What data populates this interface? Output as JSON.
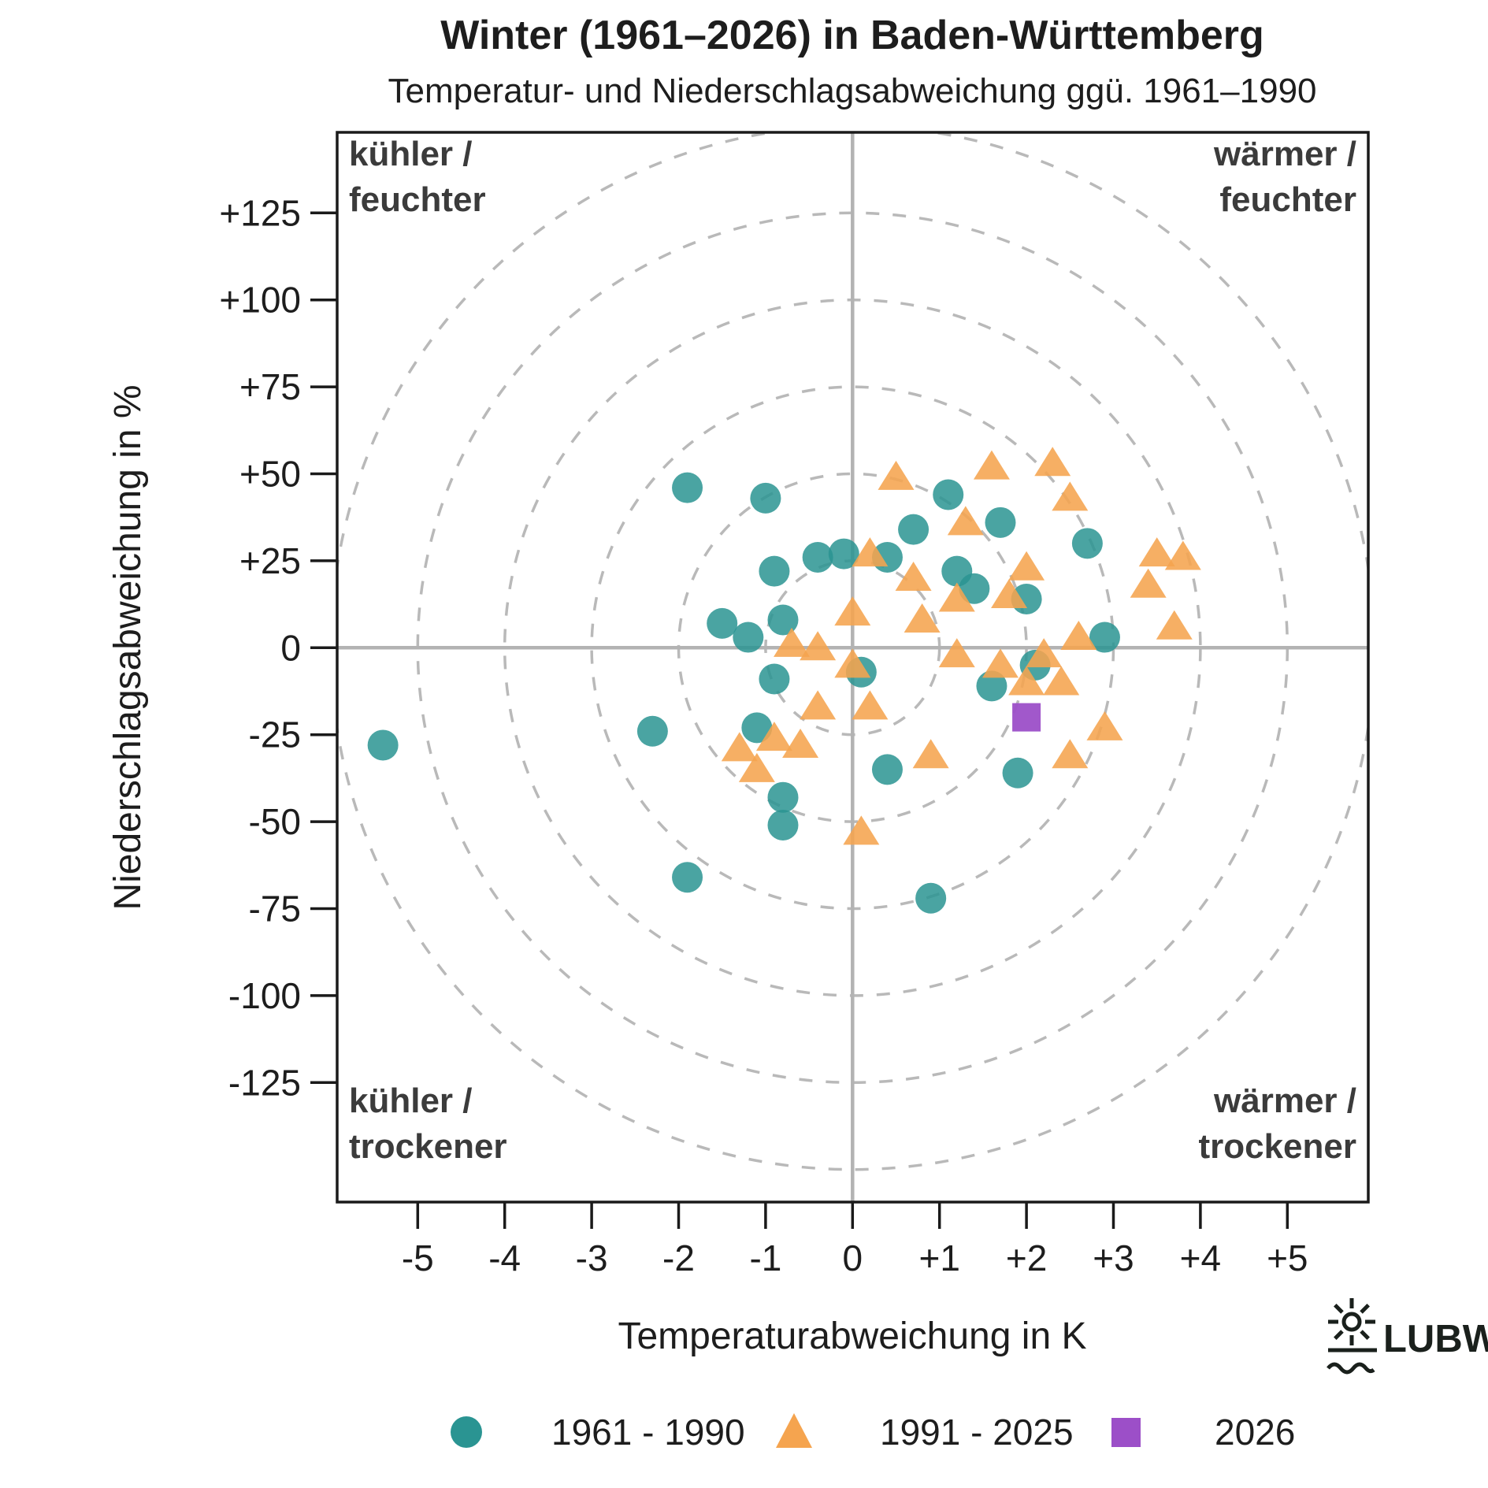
{
  "header": {
    "title": "Winter (1961–2026) in Baden-Württemberg",
    "subtitle": "Temperatur- und Niederschlagsabweichung ggü. 1961–1990"
  },
  "axes": {
    "x_label": "Temperaturabweichung in K",
    "y_label": "Niederschlagsabweichung in %",
    "x_ticks": [
      {
        "value": -5,
        "label": "-5"
      },
      {
        "value": -4,
        "label": "-4"
      },
      {
        "value": -3,
        "label": "-3"
      },
      {
        "value": -2,
        "label": "-2"
      },
      {
        "value": -1,
        "label": "-1"
      },
      {
        "value": 0,
        "label": "0"
      },
      {
        "value": 1,
        "label": "+1"
      },
      {
        "value": 2,
        "label": "+2"
      },
      {
        "value": 3,
        "label": "+3"
      },
      {
        "value": 4,
        "label": "+4"
      },
      {
        "value": 5,
        "label": "+5"
      }
    ],
    "y_ticks": [
      {
        "value": 125,
        "label": "+125"
      },
      {
        "value": 100,
        "label": "+100"
      },
      {
        "value": 75,
        "label": "+75"
      },
      {
        "value": 50,
        "label": "+50"
      },
      {
        "value": 25,
        "label": "+25"
      },
      {
        "value": 0,
        "label": "0"
      },
      {
        "value": -25,
        "label": "-25"
      },
      {
        "value": -50,
        "label": "-50"
      },
      {
        "value": -75,
        "label": "-75"
      },
      {
        "value": -100,
        "label": "-100"
      },
      {
        "value": -125,
        "label": "-125"
      }
    ]
  },
  "quadrants": {
    "top_left": [
      "kühler /",
      "feuchter"
    ],
    "top_right": [
      "wärmer /",
      "feuchter"
    ],
    "bottom_left": [
      "kühler /",
      "trockener"
    ],
    "bottom_right": [
      "wärmer /",
      "trockener"
    ]
  },
  "legend": [
    {
      "label": "1961 - 1990",
      "marker": "circle",
      "color": "#2A9492"
    },
    {
      "label": "1991 - 2025",
      "marker": "triangle",
      "color": "#F5A44F"
    },
    {
      "label": "2026",
      "marker": "square",
      "color": "#9C4FC8"
    }
  ],
  "logo": {
    "text": "LUBW"
  },
  "colors": {
    "teal": "#2A9492",
    "orange": "#F5A44F",
    "purple": "#9C4FC8",
    "grid_dashed": "#b9b9b9",
    "zero_line": "#b3b3b3",
    "border": "#1a1a1a",
    "quadrant_text": "#3b3b3b"
  },
  "chart_data": {
    "type": "scatter",
    "title": "Winter (1961–2026) in Baden-Württemberg",
    "subtitle": "Temperatur- und Niederschlagsabweichung ggü. 1961–1990",
    "xlabel": "Temperaturabweichung in K",
    "ylabel": "Niederschlagsabweichung in %",
    "xlim": [
      -5.93,
      5.93
    ],
    "ylim": [
      -159,
      148
    ],
    "grid": "dashed concentric circles, radii in % units, centered at origin",
    "grid_circle_radii": [
      25,
      50,
      75,
      100,
      125,
      150
    ],
    "legend_position": "bottom",
    "series": [
      {
        "name": "1961 - 1990",
        "marker": "circle",
        "color": "#2A9492",
        "points": [
          [
            -1.9,
            46
          ],
          [
            -1.0,
            43
          ],
          [
            0.7,
            34
          ],
          [
            1.1,
            44
          ],
          [
            1.7,
            36
          ],
          [
            2.7,
            30
          ],
          [
            -0.4,
            26
          ],
          [
            -0.1,
            27
          ],
          [
            0.4,
            26
          ],
          [
            -0.9,
            22
          ],
          [
            1.2,
            22
          ],
          [
            1.4,
            17
          ],
          [
            2.0,
            14
          ],
          [
            2.9,
            3
          ],
          [
            -1.5,
            7
          ],
          [
            -1.2,
            3
          ],
          [
            -0.8,
            8
          ],
          [
            0.1,
            -7
          ],
          [
            -0.9,
            -9
          ],
          [
            1.6,
            -11
          ],
          [
            2.1,
            -5
          ],
          [
            -1.1,
            -23
          ],
          [
            -2.3,
            -24
          ],
          [
            -5.4,
            -28
          ],
          [
            0.4,
            -35
          ],
          [
            1.9,
            -36
          ],
          [
            -0.8,
            -43
          ],
          [
            -0.8,
            -51
          ],
          [
            -1.9,
            -66
          ],
          [
            0.9,
            -72
          ]
        ]
      },
      {
        "name": "1991 - 2025",
        "marker": "triangle",
        "color": "#F5A44F",
        "points": [
          [
            0.5,
            49
          ],
          [
            1.6,
            52
          ],
          [
            2.3,
            53
          ],
          [
            2.5,
            43
          ],
          [
            1.3,
            36
          ],
          [
            0.2,
            27
          ],
          [
            0.7,
            20
          ],
          [
            0.8,
            8
          ],
          [
            1.2,
            14
          ],
          [
            1.8,
            15
          ],
          [
            2.0,
            23
          ],
          [
            0.0,
            10
          ],
          [
            -0.7,
            1
          ],
          [
            -0.4,
            0
          ],
          [
            0.0,
            -5
          ],
          [
            1.2,
            -2
          ],
          [
            1.7,
            -5
          ],
          [
            2.2,
            -2
          ],
          [
            2.6,
            3
          ],
          [
            2.0,
            -10
          ],
          [
            2.4,
            -10
          ],
          [
            -0.4,
            -17
          ],
          [
            0.2,
            -17
          ],
          [
            -1.3,
            -29
          ],
          [
            -1.1,
            -35
          ],
          [
            -0.9,
            -26
          ],
          [
            -0.6,
            -28
          ],
          [
            0.9,
            -31
          ],
          [
            0.1,
            -53
          ],
          [
            2.9,
            -23
          ],
          [
            2.5,
            -31
          ],
          [
            3.5,
            27
          ],
          [
            3.8,
            26
          ],
          [
            3.4,
            18
          ],
          [
            3.7,
            6
          ]
        ]
      },
      {
        "name": "2026",
        "marker": "square",
        "color": "#9C4FC8",
        "points": [
          [
            2.0,
            -20
          ]
        ]
      }
    ]
  }
}
